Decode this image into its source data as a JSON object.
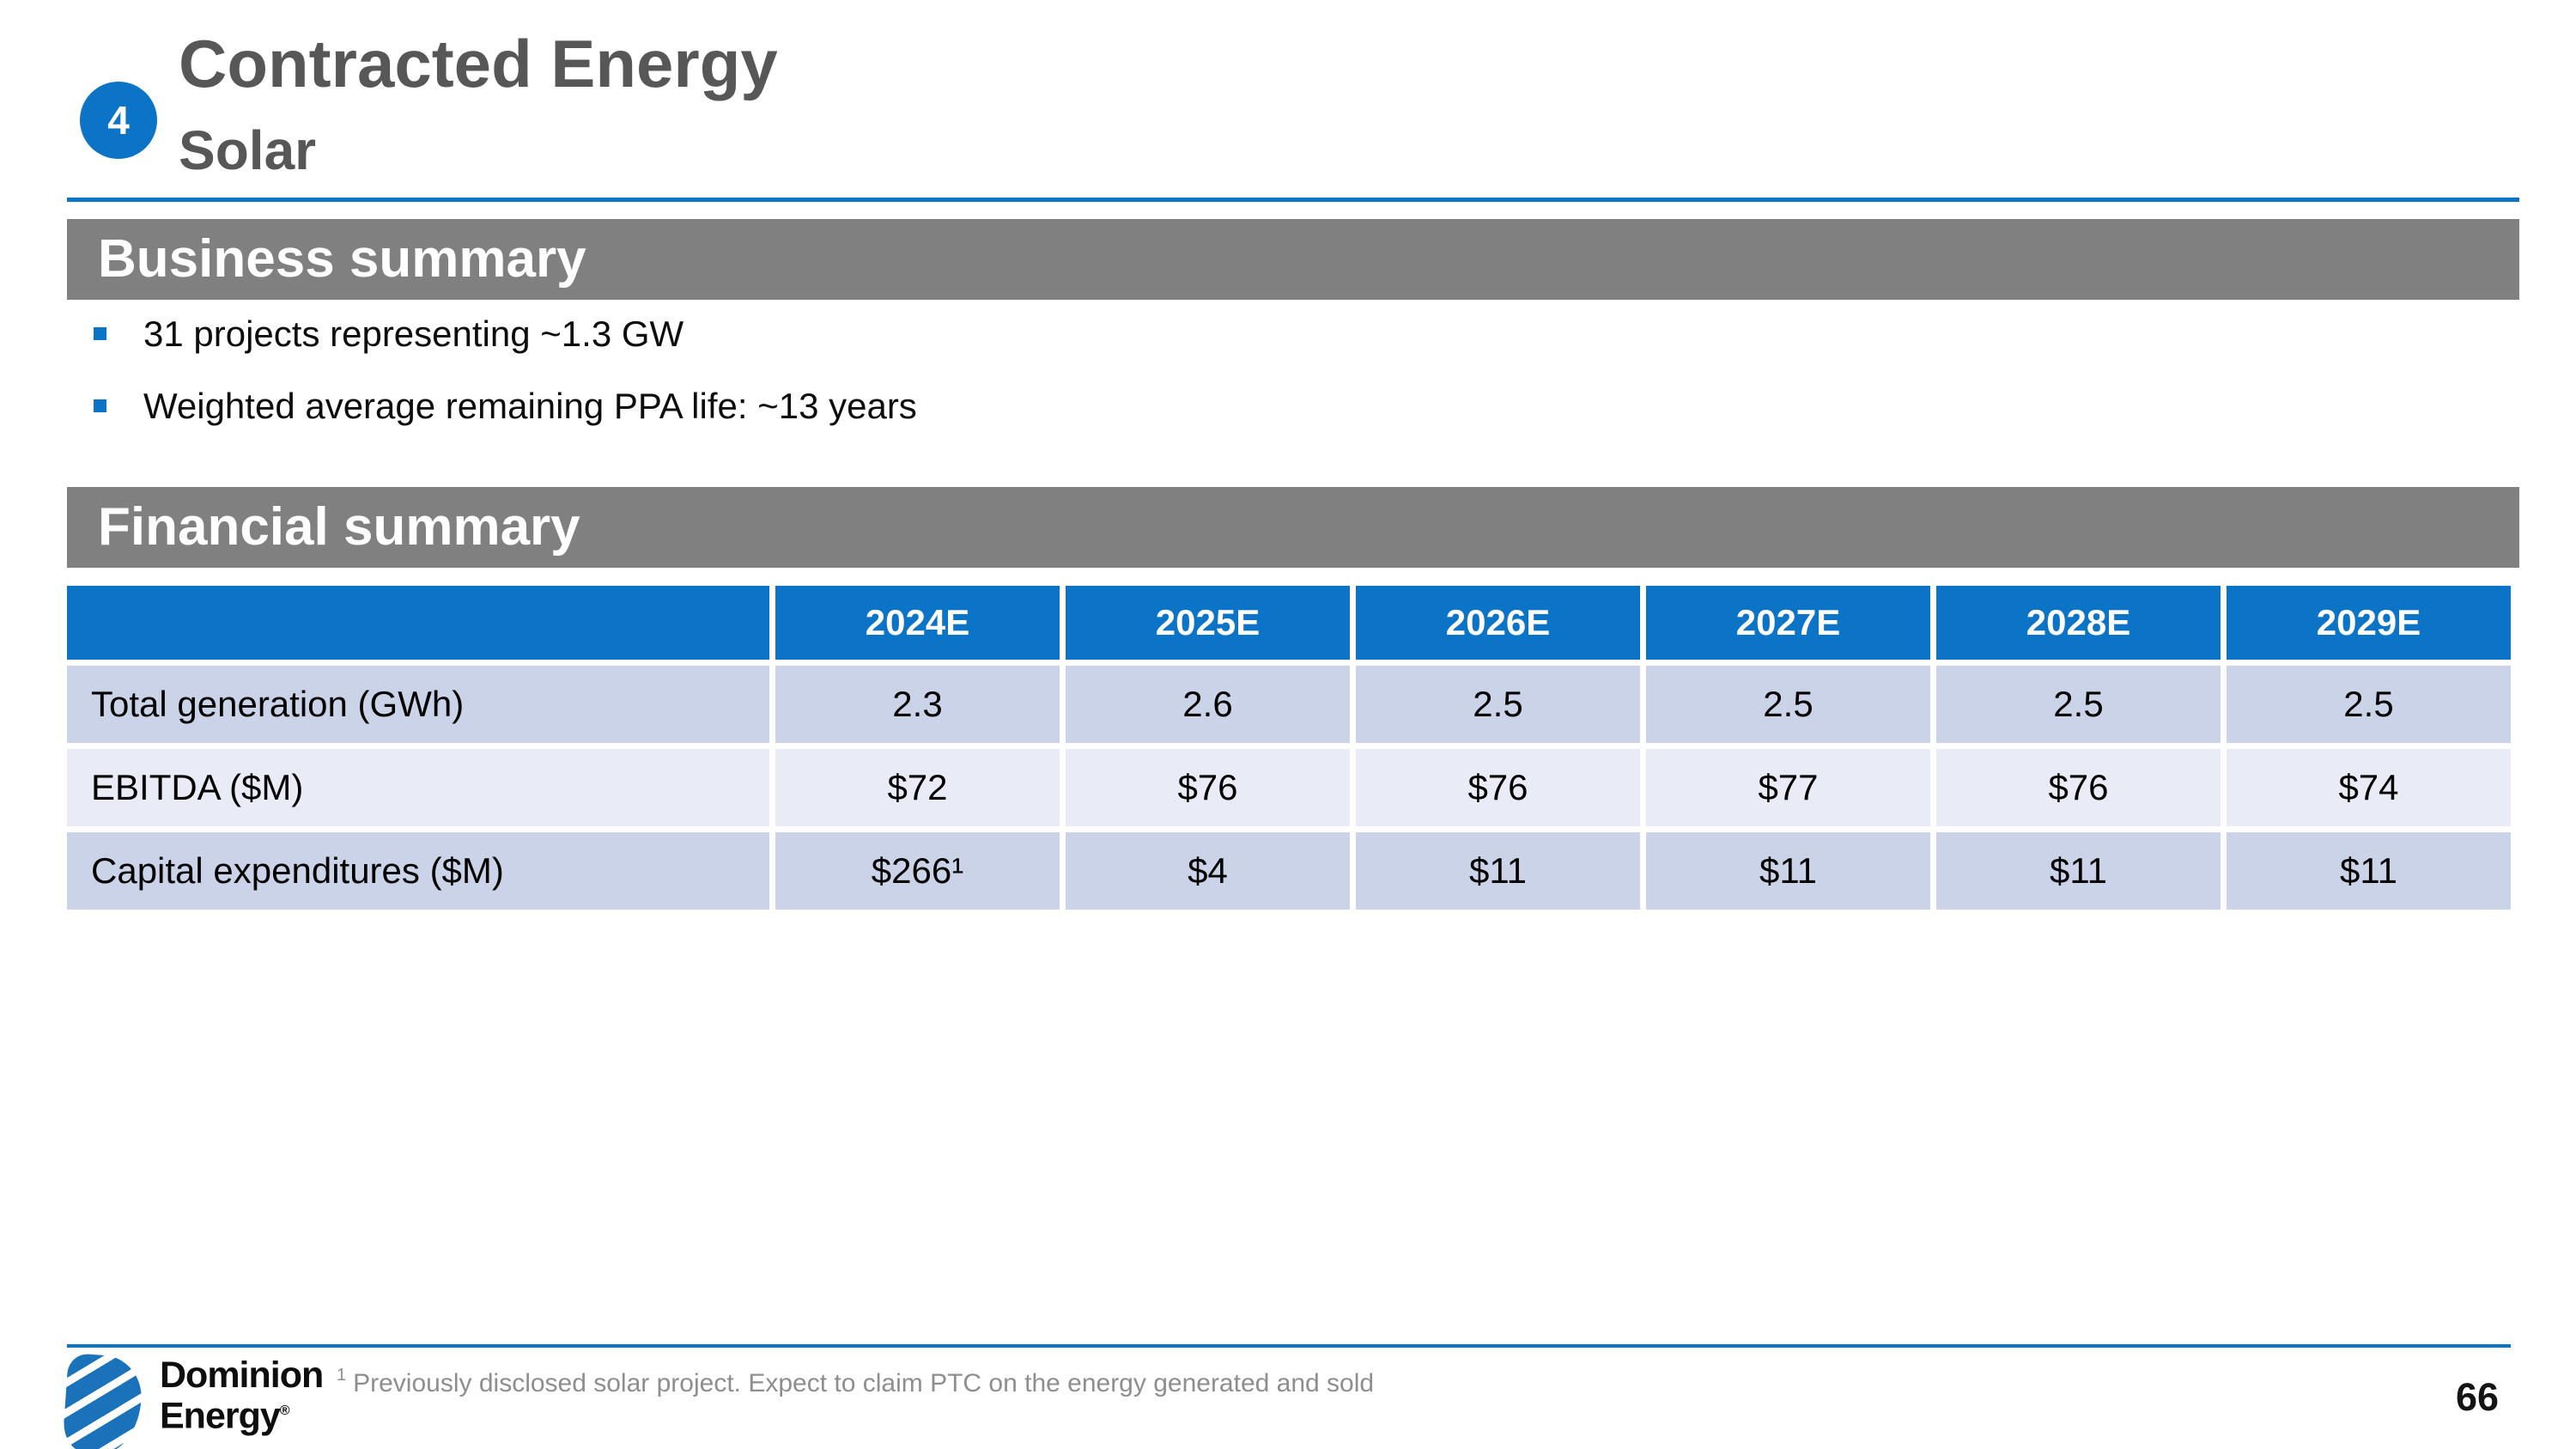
{
  "slide": {
    "badge": "4",
    "title": "Contracted Energy",
    "subtitle": "Solar"
  },
  "business_summary": {
    "heading": "Business summary",
    "bullets": [
      "31 projects representing ~1.3 GW",
      "Weighted average remaining PPA life: ~13 years"
    ]
  },
  "financial_summary": {
    "heading": "Financial summary",
    "table": {
      "columns": [
        "2024E",
        "2025E",
        "2026E",
        "2027E",
        "2028E",
        "2029E"
      ],
      "rows": [
        {
          "label": "Total generation (GWh)",
          "values": [
            "2.3",
            "2.6",
            "2.5",
            "2.5",
            "2.5",
            "2.5"
          ]
        },
        {
          "label": "EBITDA ($M)",
          "values": [
            "$72",
            "$76",
            "$76",
            "$77",
            "$76",
            "$74"
          ]
        },
        {
          "label": "Capital expenditures ($M)",
          "values": [
            "$266¹",
            "$4",
            "$11",
            "$11",
            "$11",
            "$11"
          ]
        }
      ]
    }
  },
  "footer": {
    "logo": {
      "line1": "Dominion",
      "line2": "Energy",
      "registered": "®"
    },
    "footnote": {
      "superscript": "1",
      "text": "Previously disclosed solar project. Expect to claim PTC on the energy generated and sold"
    },
    "page_number": "66"
  },
  "colors": {
    "brand_blue": "#0c74c6",
    "band_gray": "#808080",
    "title_gray": "#575757",
    "row_shade_dark": "#cbd3e9",
    "row_shade_light": "#e9ecf6",
    "footnote_gray": "#8e8e8e"
  }
}
